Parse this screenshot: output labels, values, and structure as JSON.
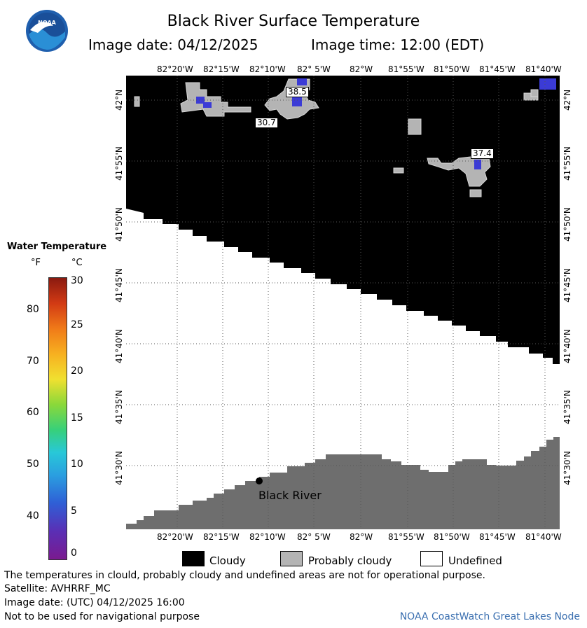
{
  "header": {
    "title": "Black River Surface Temperature",
    "image_date": "Image date: 04/12/2025",
    "image_time": "Image time: 12:00 (EDT)",
    "logo_text": "NOAA"
  },
  "map": {
    "lon_ticks": [
      "82°20'W",
      "82°15'W",
      "82°10'W",
      "82° 5'W",
      "82°W",
      "81°55'W",
      "81°50'W",
      "81°45'W",
      "81°40'W"
    ],
    "lat_ticks": [
      "42°N",
      "41°55'N",
      "41°50'N",
      "41°45'N",
      "41°40'N",
      "41°35'N",
      "41°30'N"
    ],
    "place_label": "Black River",
    "temp_tags": [
      "38.5",
      "30.7",
      "37.4"
    ]
  },
  "legend": {
    "title": "Water Temperature",
    "unit_f": "°F",
    "unit_c": "°C",
    "f_ticks": [
      "80",
      "70",
      "60",
      "50",
      "40"
    ],
    "c_ticks": [
      "30",
      "25",
      "20",
      "15",
      "10",
      "5",
      "0"
    ]
  },
  "key": {
    "cloudy": "Cloudy",
    "probably_cloudy": "Probably cloudy",
    "undefined": "Undefined",
    "colors": {
      "cloudy": "#000000",
      "probably_cloudy": "#b4b4b4",
      "undefined": "#ffffff",
      "land": "#6e6e6e"
    }
  },
  "footer": {
    "note": "The temperatures in clould, probably cloudy and undefined areas are not for operational purpose.",
    "satellite": "Satellite: AVHRRF_MC",
    "utc_date": "Image date: (UTC) 04/12/2025  16:00",
    "nav_warning": "Not to be used for navigational purpose",
    "credit": "NOAA CoastWatch Great Lakes Node"
  }
}
